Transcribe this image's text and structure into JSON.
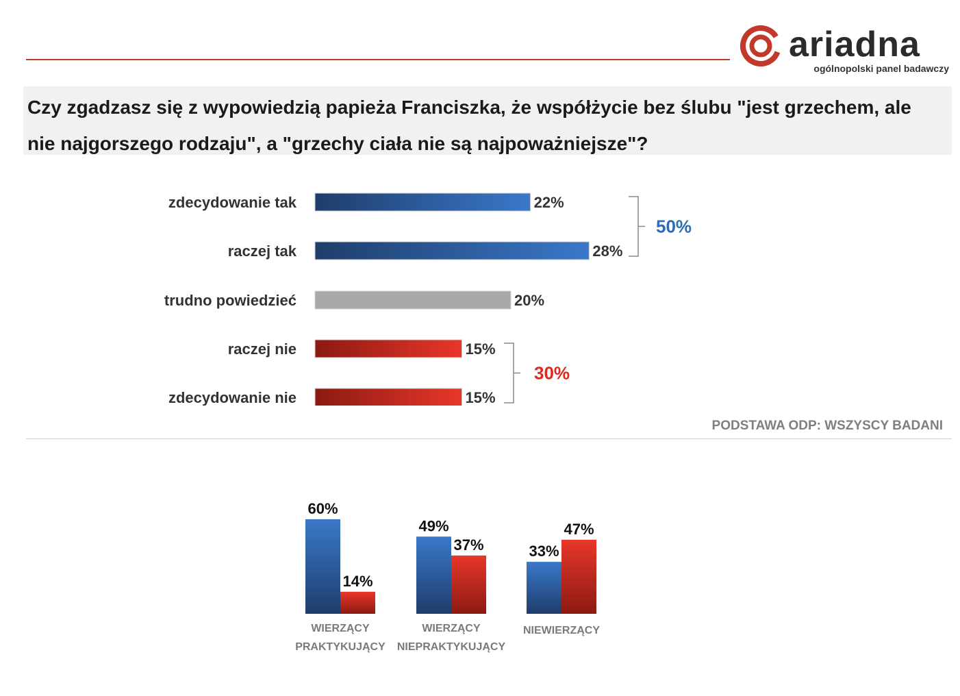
{
  "brand": {
    "name": "ariadna",
    "tagline": "ogólnopolski panel badawczy"
  },
  "question": "Czy zgadzasz się z wypowiedzią papieża Franciszka, że współżycie bez ślubu \"jest grzechem, ale nie najgorszego rodzaju\", a \"grzechy ciała nie są najpoważniejsze\"?",
  "base_note": "PODSTAWA ODP: WSZYSCY BADANI",
  "colors": {
    "blue_dark": "#1f3d6b",
    "blue_light": "#3a78c9",
    "gray": "#a9a9a9",
    "red_dark": "#8b1a12",
    "red_light": "#e8372a",
    "sum_blue": "#2e6db4",
    "sum_red": "#e0281e"
  },
  "chart_data": [
    {
      "type": "bar",
      "orientation": "horizontal",
      "categories": [
        "zdecydowanie tak",
        "raczej tak",
        "trudno powiedzieć",
        "raczej nie",
        "zdecydowanie nie"
      ],
      "values": [
        22,
        28,
        20,
        15,
        15
      ],
      "value_labels": [
        "22%",
        "28%",
        "20%",
        "15%",
        "15%"
      ],
      "unit": "%",
      "groups": [
        {
          "label": "50%",
          "from": 0,
          "to": 1,
          "color": "blue"
        },
        {
          "label": "30%",
          "from": 3,
          "to": 4,
          "color": "red"
        }
      ]
    },
    {
      "type": "bar",
      "orientation": "vertical",
      "categories": [
        [
          "WIERZĄCY",
          "PRAKTYKUJĄCY"
        ],
        [
          "WIERZĄCY",
          "NIEPRAKTYKUJĄCY"
        ],
        [
          "NIEWIERZĄCY"
        ]
      ],
      "series": [
        {
          "values": [
            60,
            49,
            33
          ],
          "labels": [
            "60%",
            "49%",
            "33%"
          ],
          "color": "blue"
        },
        {
          "values": [
            14,
            37,
            47
          ],
          "labels": [
            "14%",
            "37%",
            "47%"
          ],
          "color": "red"
        }
      ],
      "unit": "%"
    }
  ]
}
